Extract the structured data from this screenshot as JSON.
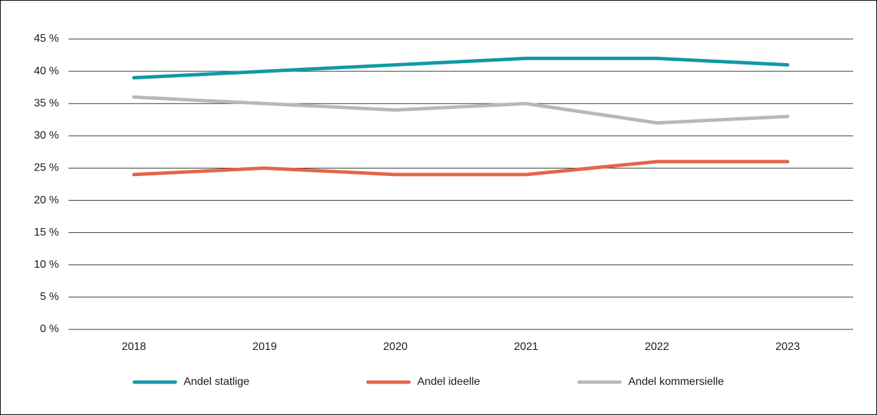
{
  "chart_data": {
    "type": "line",
    "categories": [
      "2018",
      "2019",
      "2020",
      "2021",
      "2022",
      "2023"
    ],
    "series": [
      {
        "name": "Andel statlige",
        "color": "#0f9aa5",
        "values": [
          39,
          40,
          41,
          42,
          42,
          41
        ]
      },
      {
        "name": "Andel ideelle",
        "color": "#e5644b",
        "values": [
          24,
          25,
          24,
          24,
          26,
          26
        ]
      },
      {
        "name": "Andel kommersielle",
        "color": "#b8b8b8",
        "values": [
          36,
          35,
          34,
          35,
          32,
          33
        ]
      }
    ],
    "ylim": [
      0,
      45
    ],
    "yticks": [
      {
        "value": 0,
        "label": "0 %"
      },
      {
        "value": 5,
        "label": "5 %"
      },
      {
        "value": 10,
        "label": "10 %"
      },
      {
        "value": 15,
        "label": "15 %"
      },
      {
        "value": 20,
        "label": "20 %"
      },
      {
        "value": 25,
        "label": "25 %"
      },
      {
        "value": 30,
        "label": "30 %"
      },
      {
        "value": 35,
        "label": "35 %"
      },
      {
        "value": 40,
        "label": "40 %"
      },
      {
        "value": 45,
        "label": "45 %"
      }
    ],
    "grid": true,
    "legend": "bottom"
  }
}
